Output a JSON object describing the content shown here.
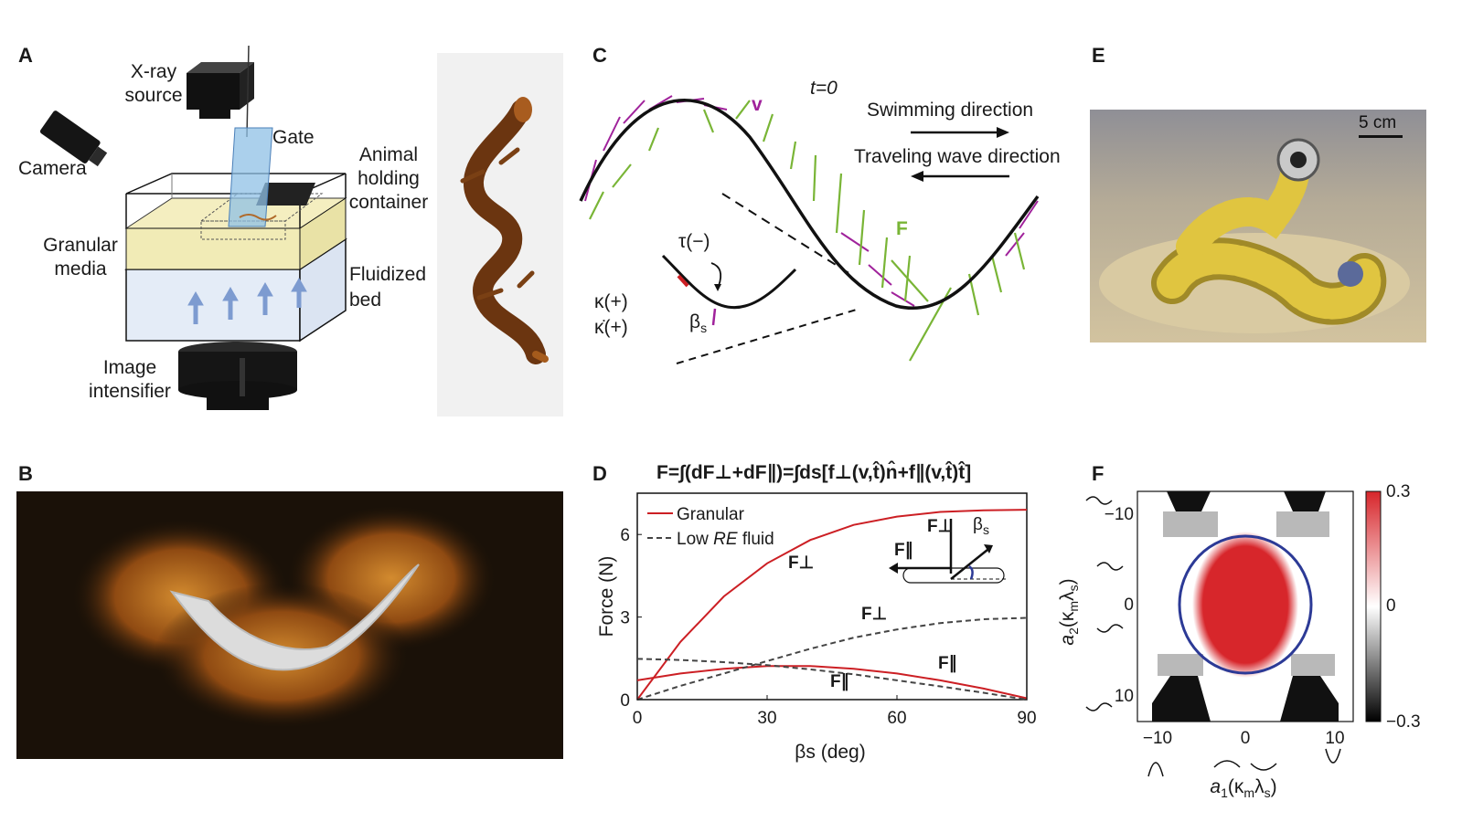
{
  "panels": {
    "a": "A",
    "b": "B",
    "c": "C",
    "d": "D",
    "e": "E",
    "f": "F"
  },
  "panel_a": {
    "xray_source_line1": "X-ray",
    "xray_source_line2": "source",
    "camera": "Camera",
    "gate": "Gate",
    "animal_line1": "Animal",
    "animal_line2": "holding",
    "animal_line3": "container",
    "granular_line1": "Granular",
    "granular_line2": "media",
    "fluidized_line1": "Fluidized",
    "fluidized_line2": "bed",
    "intensifier_line1": "Image",
    "intensifier_line2": "intensifier"
  },
  "panel_c": {
    "time_label": "t=0",
    "swimming_direction": "Swimming direction",
    "traveling_wave_direction": "Traveling wave direction",
    "velocity_label": "v",
    "force_label": "F",
    "torque_label": "τ(−)",
    "kappa_label": "κ(+)",
    "kappa_dot_label": "κ̇(+)",
    "beta_label": "β",
    "beta_sub": "s"
  },
  "panel_d": {
    "equation": "F=∫(dF⊥+dF∥)=∫ds[f⊥(v,t̂)n̂+f∥(v,t̂)t̂]",
    "legend_granular": "Granular",
    "legend_fluid_prefix": "Low ",
    "legend_fluid_em": "RE",
    "legend_fluid_suffix": " fluid",
    "f_perp": "F⊥",
    "f_par": "F∥",
    "inset_beta": "β",
    "inset_beta_sub": "s"
  },
  "panel_e": {
    "scale_bar": "5 cm"
  },
  "panel_f": {
    "colorbar_max": "0.3",
    "colorbar_mid": "0",
    "colorbar_min": "−0.3",
    "xlabel_main": "a",
    "xlabel_sub": "1",
    "xlabel_rest": "(κ",
    "xlabel_m": "m",
    "xlabel_lambda": "λ",
    "xlabel_s": "s",
    "ylabel_main": "a",
    "ylabel_sub": "2",
    "x_ticks": [
      "−10",
      "0",
      "10"
    ],
    "y_ticks": [
      "−10",
      "0",
      "10"
    ]
  },
  "colors": {
    "granular": "#cc1f24",
    "fluid": "#444444",
    "velocity": "#a0229b",
    "force": "#79b536",
    "circle": "#2c3a96",
    "heat_red": "#d7262b"
  },
  "chart_data": {
    "type": "line",
    "title": "F=∫(dF⊥+dF∥)=∫ds[f⊥(v,t̂)n̂+f∥(v,t̂)t̂]",
    "xlabel": "βs (deg)",
    "ylabel": "Force (N)",
    "xlim": [
      0,
      90
    ],
    "ylim": [
      0,
      7.5
    ],
    "x_ticks": [
      "0",
      "30",
      "60",
      "90"
    ],
    "y_ticks": [
      "0",
      "3",
      "6"
    ],
    "x": [
      0,
      10,
      20,
      30,
      40,
      50,
      60,
      70,
      80,
      90
    ],
    "series": [
      {
        "name": "Granular F⊥",
        "style": "solid",
        "color": "#cc1f24",
        "values": [
          0.0,
          2.1,
          3.75,
          4.95,
          5.8,
          6.35,
          6.65,
          6.82,
          6.88,
          6.9
        ]
      },
      {
        "name": "Granular F∥",
        "style": "solid",
        "color": "#cc1f24",
        "values": [
          0.7,
          0.95,
          1.12,
          1.22,
          1.22,
          1.12,
          0.95,
          0.7,
          0.4,
          0.05
        ]
      },
      {
        "name": "Low RE fluid F⊥",
        "style": "dashed",
        "color": "#444444",
        "values": [
          0.0,
          0.5,
          0.95,
          1.4,
          1.85,
          2.25,
          2.55,
          2.78,
          2.92,
          2.97
        ]
      },
      {
        "name": "Low RE fluid F∥",
        "style": "dashed",
        "color": "#444444",
        "values": [
          1.48,
          1.44,
          1.36,
          1.25,
          1.1,
          0.92,
          0.7,
          0.48,
          0.25,
          0.0
        ]
      }
    ],
    "legend": [
      "Granular",
      "Low RE fluid"
    ],
    "legend_position": "top-left"
  }
}
